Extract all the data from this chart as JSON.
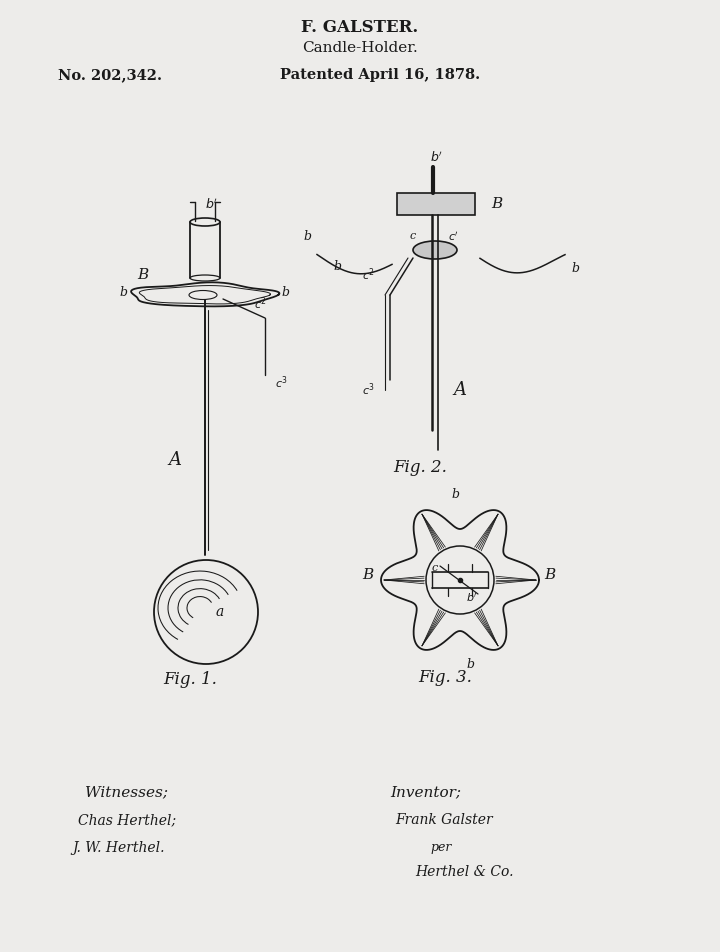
{
  "title1": "F. GALSTER.",
  "title2": "Candle-Holder.",
  "patent_no": "No. 202,342.",
  "patent_date": "Patented April 16, 1878.",
  "fig1_label": "Fig. 1.",
  "fig2_label": "Fig. 2.",
  "fig3_label": "Fig. 3.",
  "witnesses_label": "Witnesses;",
  "witness1": "Chas Herthel;",
  "witness2": "J. W. Herthel.",
  "inventor_label": "Inventor;",
  "inventor1": "Frank Galster",
  "inventor2": "per",
  "inventor3": "Herthel & Co.",
  "bg_color": "#edecea",
  "line_color": "#1a1a1a",
  "fig_width": 7.2,
  "fig_height": 9.52
}
